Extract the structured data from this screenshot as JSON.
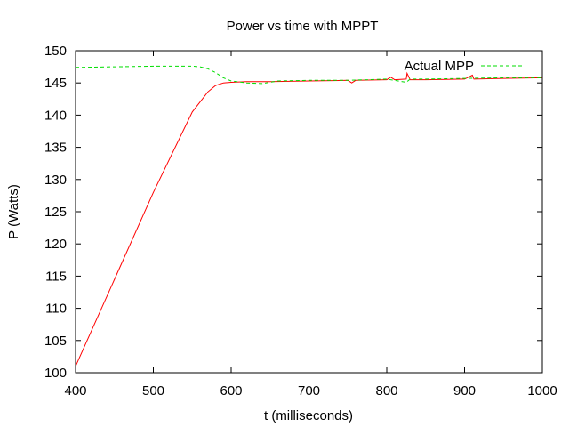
{
  "chart_data": {
    "type": "line",
    "title": "Power vs time with MPPT",
    "xlabel": "t (milliseconds)",
    "ylabel": "P (Watts)",
    "xlim": [
      400,
      1000
    ],
    "ylim": [
      100,
      150
    ],
    "xticks": [
      400,
      500,
      600,
      700,
      800,
      900,
      1000
    ],
    "yticks": [
      100,
      105,
      110,
      115,
      120,
      125,
      130,
      135,
      140,
      145,
      150
    ],
    "grid": false,
    "legend_position": "top-right",
    "series": [
      {
        "name": "",
        "color": "#ff0000",
        "style": "solid",
        "x": [
          400,
          450,
          500,
          550,
          570,
          580,
          590,
          600,
          620,
          650,
          700,
          750,
          755,
          760,
          800,
          805,
          810,
          825,
          826,
          830,
          850,
          900,
          910,
          912,
          950,
          1000
        ],
        "y": [
          101,
          114.5,
          128,
          140.5,
          143.6,
          144.6,
          145.0,
          145.1,
          145.2,
          145.2,
          145.3,
          145.4,
          145.0,
          145.4,
          145.5,
          145.9,
          145.5,
          145.6,
          146.5,
          145.5,
          145.5,
          145.6,
          146.2,
          145.6,
          145.7,
          145.8
        ]
      },
      {
        "name": "Actual MPP",
        "color": "#00dd00",
        "style": "dashed",
        "x": [
          400,
          450,
          500,
          530,
          550,
          560,
          570,
          580,
          590,
          600,
          620,
          640,
          660,
          700,
          750,
          800,
          825,
          830,
          850,
          900,
          950,
          1000
        ],
        "y": [
          147.4,
          147.5,
          147.6,
          147.6,
          147.6,
          147.5,
          147.2,
          146.6,
          145.8,
          145.3,
          145.0,
          144.9,
          145.3,
          145.4,
          145.4,
          145.6,
          145.1,
          145.6,
          145.6,
          145.7,
          145.8,
          145.8
        ]
      }
    ]
  }
}
